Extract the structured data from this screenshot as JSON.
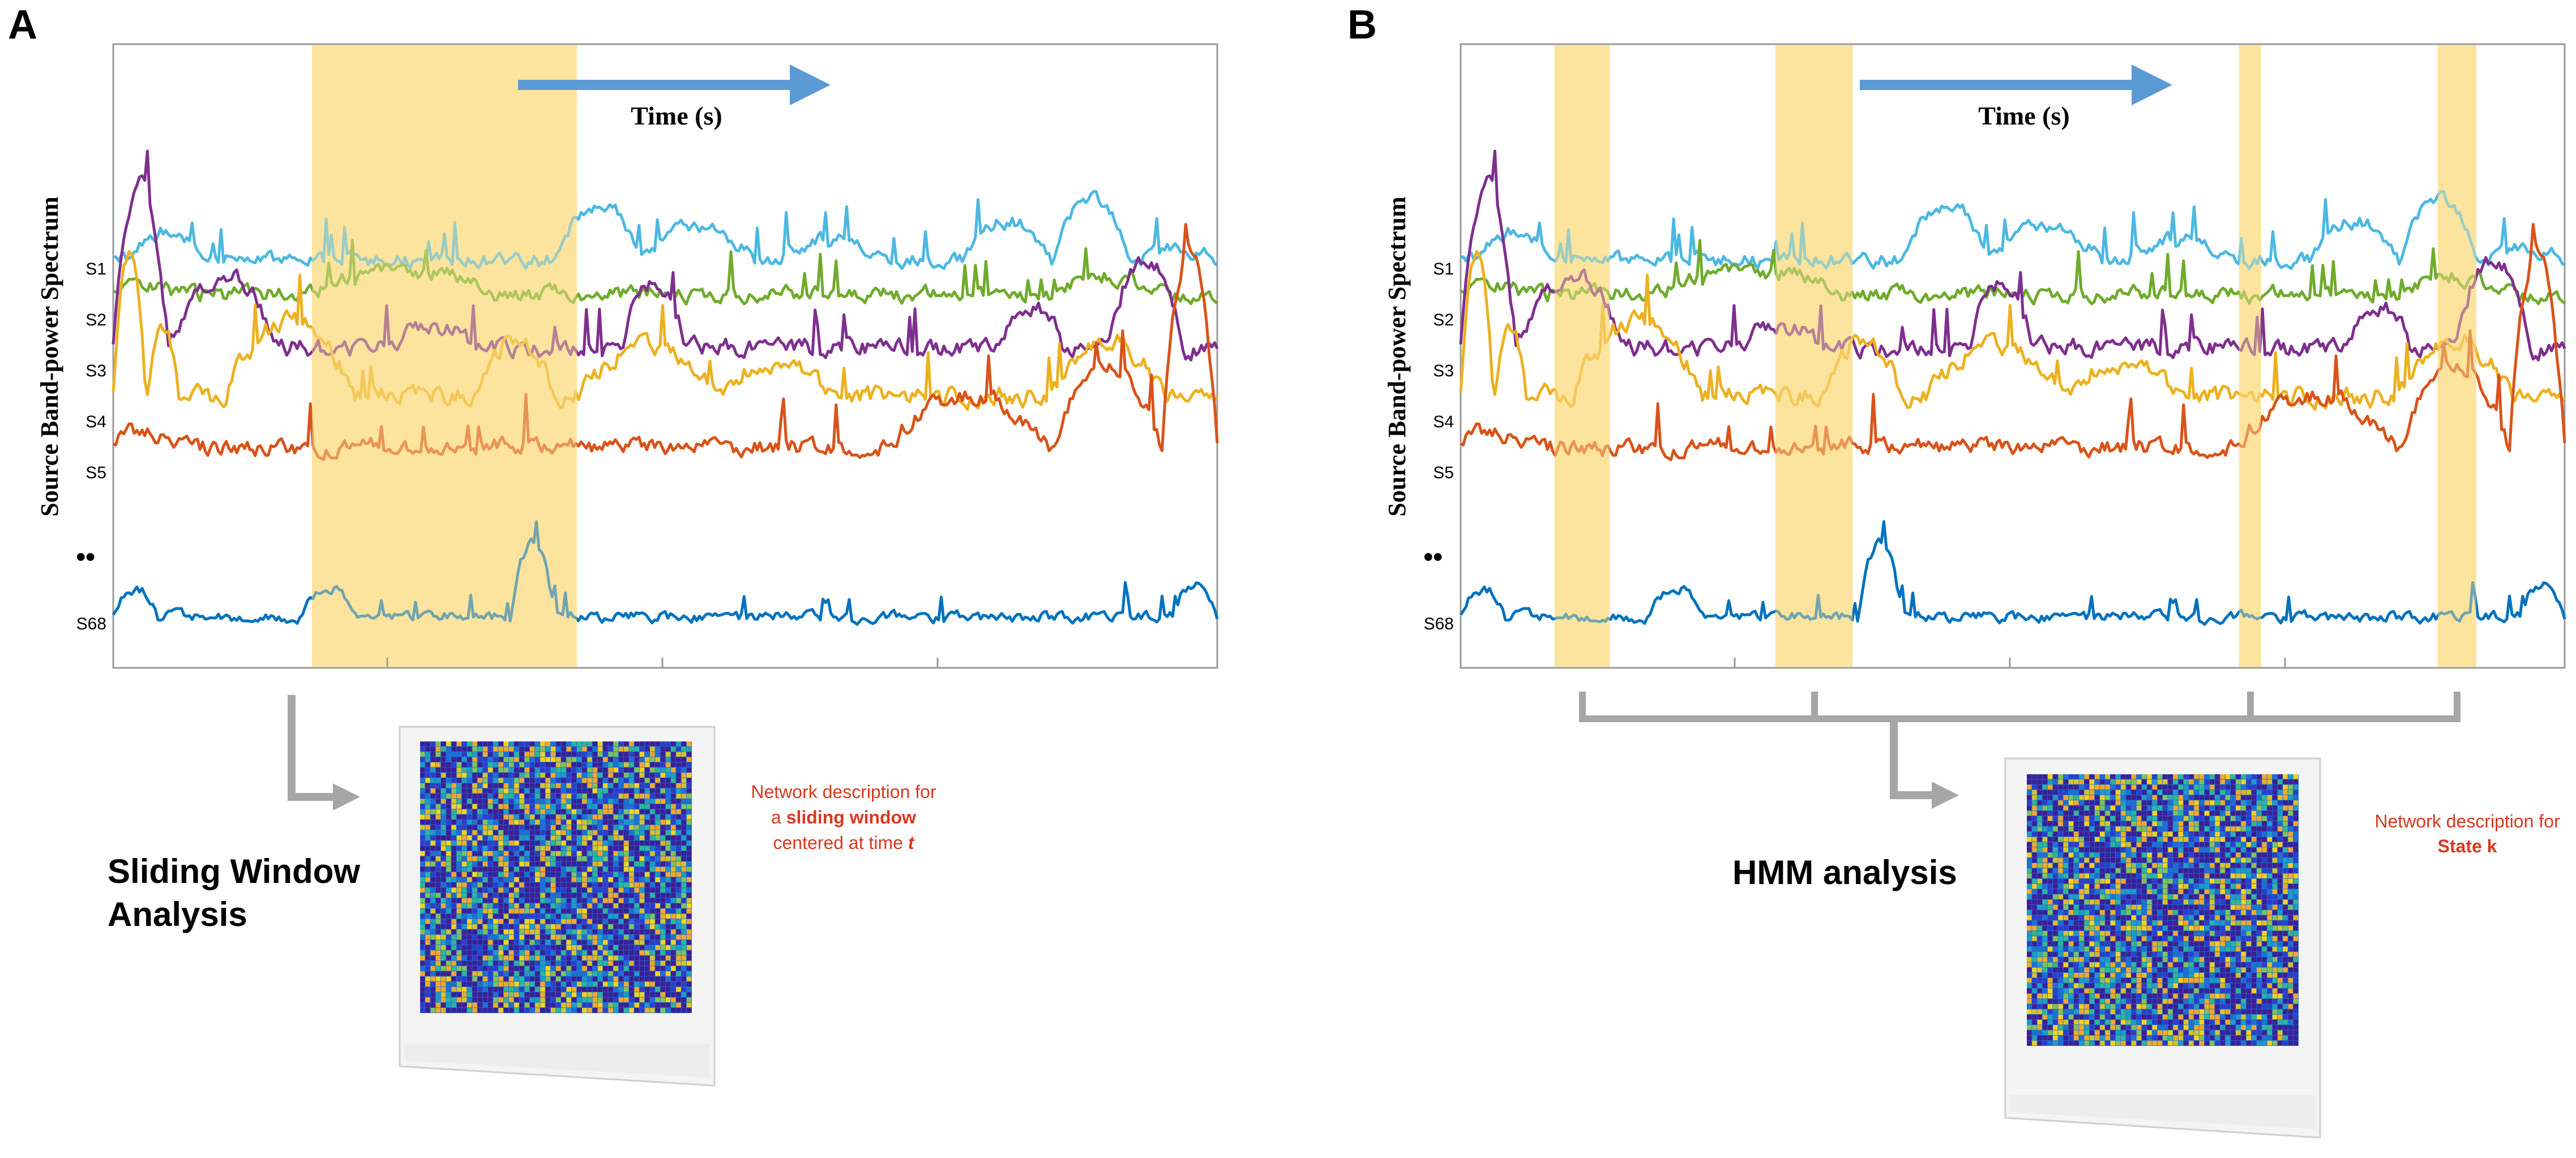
{
  "figure": {
    "panels": [
      {
        "panel_label": "A",
        "time_label": "Time (s)",
        "y_axis_label": "Source Band-power Spectrum",
        "tick_labels": [
          "S1",
          "S2",
          "S3",
          "S4",
          "S5",
          "S68"
        ],
        "ellipsis": "••",
        "method_title_line1": "Sliding Window",
        "method_title_line2": "Analysis",
        "description_line1": "Network description for",
        "description_line2_prefix": "a ",
        "description_line2_bold": "sliding window",
        "description_line3_prefix": "centered at time ",
        "description_line3_bold": "t",
        "highlight_windows": [
          [
            0.18,
            0.42
          ]
        ]
      },
      {
        "panel_label": "B",
        "time_label": "Time (s)",
        "y_axis_label": "Source Band-power Spectrum",
        "tick_labels": [
          "S1",
          "S2",
          "S3",
          "S4",
          "S5",
          "S68"
        ],
        "ellipsis": "••",
        "method_title_line1": "HMM analysis",
        "description_line1": "Network description for",
        "description_line2_bold": "State k",
        "highlight_windows": [
          [
            0.085,
            0.135
          ],
          [
            0.285,
            0.355
          ],
          [
            0.705,
            0.725
          ],
          [
            0.885,
            0.92
          ]
        ]
      }
    ],
    "colors": {
      "highlight": "#fde49e",
      "s1": "#4cb8e2",
      "s2": "#6fab2c",
      "s3": "#7e2f8e",
      "s4": "#edb120",
      "s5": "#d95319",
      "s68": "#0072bd",
      "arrow": "#5b9bd5",
      "description_text": "#d9381e",
      "connector": "#a6a6a6"
    }
  }
}
